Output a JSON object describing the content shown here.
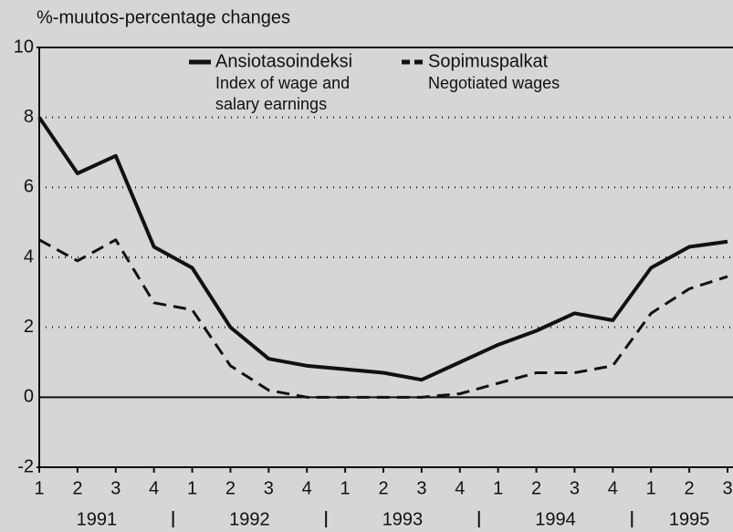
{
  "chart_data": {
    "type": "line",
    "y_axis_label": "%-muutos-percentage changes",
    "categories": [
      "1",
      "2",
      "3",
      "4",
      "1",
      "2",
      "3",
      "4",
      "1",
      "2",
      "3",
      "4",
      "1",
      "2",
      "3",
      "4",
      "1",
      "2",
      "3"
    ],
    "years": [
      "1991",
      "1992",
      "1993",
      "1994",
      "1995"
    ],
    "series": [
      {
        "name": "Ansiotasoindeksi",
        "description_lines": [
          "Index of wage and",
          "salary earnings"
        ],
        "color": "#111111",
        "dash": "solid",
        "values": [
          8.0,
          6.4,
          6.9,
          4.3,
          3.7,
          2.0,
          1.1,
          0.9,
          0.8,
          0.7,
          0.5,
          1.0,
          1.5,
          1.9,
          2.4,
          2.2,
          3.7,
          4.3,
          4.45
        ]
      },
      {
        "name": "Sopimuspalkat",
        "description_lines": [
          "Negotiated wages"
        ],
        "color": "#111111",
        "dash": "dashed",
        "values": [
          4.5,
          3.9,
          4.5,
          2.7,
          2.5,
          0.9,
          0.2,
          0.0,
          0.0,
          0.0,
          0.0,
          0.1,
          0.4,
          0.7,
          0.7,
          0.9,
          2.4,
          3.1,
          3.45
        ]
      }
    ],
    "ylim": [
      -2,
      10
    ],
    "yticks": [
      -2,
      0,
      2,
      4,
      6,
      8,
      10
    ],
    "grid": true
  }
}
